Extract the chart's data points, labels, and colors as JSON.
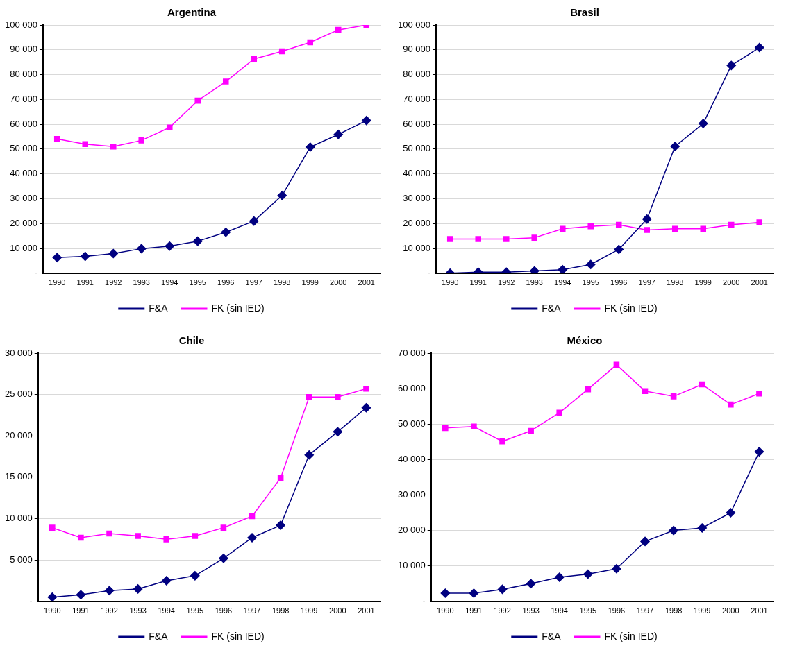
{
  "chart_data": [
    {
      "type": "line",
      "title": "Argentina",
      "categories": [
        "1990",
        "1991",
        "1992",
        "1993",
        "1994",
        "1995",
        "1996",
        "1997",
        "1998",
        "1999",
        "2000",
        "2001"
      ],
      "ylim": [
        0,
        100000
      ],
      "yticks": [
        {
          "value": 0,
          "label": "-"
        },
        {
          "value": 10000,
          "label": "10 000"
        },
        {
          "value": 20000,
          "label": "20 000"
        },
        {
          "value": 30000,
          "label": "30 000"
        },
        {
          "value": 40000,
          "label": "40 000"
        },
        {
          "value": 50000,
          "label": "50 000"
        },
        {
          "value": 60000,
          "label": "60 000"
        },
        {
          "value": 70000,
          "label": "70 000"
        },
        {
          "value": 80000,
          "label": "80 000"
        },
        {
          "value": 90000,
          "label": "90 000"
        },
        {
          "value": 100000,
          "label": "100 000"
        }
      ],
      "grid": "y",
      "legend": "bottom",
      "series": [
        {
          "name": "F&A",
          "color": "#000080",
          "marker": "diamond",
          "values": [
            6300,
            6800,
            7900,
            9900,
            10900,
            12900,
            16500,
            21000,
            31300,
            50800,
            55900,
            61500
          ]
        },
        {
          "name": "FK (sin IED)",
          "color": "#ff00ff",
          "marker": "square",
          "values": [
            54100,
            52000,
            51000,
            53500,
            58700,
            69500,
            77200,
            86300,
            89400,
            93000,
            98000,
            100000
          ]
        }
      ]
    },
    {
      "type": "line",
      "title": "Brasil",
      "categories": [
        "1990",
        "1991",
        "1992",
        "1993",
        "1994",
        "1995",
        "1996",
        "1997",
        "1998",
        "1999",
        "2000",
        "2001"
      ],
      "ylim": [
        0,
        100000
      ],
      "yticks": [
        {
          "value": 0,
          "label": "-"
        },
        {
          "value": 10000,
          "label": "10 000"
        },
        {
          "value": 20000,
          "label": "20 000"
        },
        {
          "value": 30000,
          "label": "30 000"
        },
        {
          "value": 40000,
          "label": "40 000"
        },
        {
          "value": 50000,
          "label": "50 000"
        },
        {
          "value": 60000,
          "label": "60 000"
        },
        {
          "value": 70000,
          "label": "70 000"
        },
        {
          "value": 80000,
          "label": "80 000"
        },
        {
          "value": 90000,
          "label": "90 000"
        },
        {
          "value": 100000,
          "label": "100 000"
        }
      ],
      "grid": "y",
      "legend": "bottom",
      "series": [
        {
          "name": "F&A",
          "color": "#000080",
          "marker": "diamond",
          "values": [
            0,
            400,
            400,
            900,
            1400,
            3500,
            9600,
            21800,
            51100,
            60300,
            83700,
            90900
          ]
        },
        {
          "name": "FK (sin IED)",
          "color": "#ff00ff",
          "marker": "square",
          "values": [
            13800,
            13800,
            13800,
            14300,
            17900,
            18900,
            19500,
            17400,
            17900,
            17900,
            19500,
            20500
          ]
        }
      ]
    },
    {
      "type": "line",
      "title": "Chile",
      "categories": [
        "1990",
        "1991",
        "1992",
        "1993",
        "1994",
        "1995",
        "1996",
        "1997",
        "1998",
        "1999",
        "2000",
        "2001"
      ],
      "ylim": [
        0,
        30000
      ],
      "yticks": [
        {
          "value": 0,
          "label": "-"
        },
        {
          "value": 5000,
          "label": "5 000"
        },
        {
          "value": 10000,
          "label": "10 000"
        },
        {
          "value": 15000,
          "label": "15 000"
        },
        {
          "value": 20000,
          "label": "20 000"
        },
        {
          "value": 25000,
          "label": "25 000"
        },
        {
          "value": 30000,
          "label": "30 000"
        }
      ],
      "grid": "y",
      "legend": "bottom",
      "series": [
        {
          "name": "F&A",
          "color": "#000080",
          "marker": "diamond",
          "values": [
            500,
            800,
            1300,
            1500,
            2500,
            3100,
            5200,
            7700,
            9200,
            17700,
            20500,
            23400
          ]
        },
        {
          "name": "FK (sin IED)",
          "color": "#ff00ff",
          "marker": "square",
          "values": [
            8900,
            7700,
            8200,
            7900,
            7500,
            7900,
            8900,
            10300,
            14900,
            24700,
            24700,
            25700
          ]
        }
      ]
    },
    {
      "type": "line",
      "title": "México",
      "categories": [
        "1990",
        "1991",
        "1992",
        "1993",
        "1994",
        "1995",
        "1996",
        "1997",
        "1998",
        "1999",
        "2000",
        "2001"
      ],
      "ylim": [
        0,
        70000
      ],
      "yticks": [
        {
          "value": 0,
          "label": "-"
        },
        {
          "value": 10000,
          "label": "10 000"
        },
        {
          "value": 20000,
          "label": "20 000"
        },
        {
          "value": 30000,
          "label": "30 000"
        },
        {
          "value": 40000,
          "label": "40 000"
        },
        {
          "value": 50000,
          "label": "50 000"
        },
        {
          "value": 60000,
          "label": "60 000"
        },
        {
          "value": 70000,
          "label": "70 000"
        }
      ],
      "grid": "y",
      "legend": "bottom",
      "series": [
        {
          "name": "F&A",
          "color": "#000080",
          "marker": "diamond",
          "values": [
            2300,
            2300,
            3400,
            5000,
            6800,
            7700,
            9200,
            16900,
            20000,
            20700,
            25000,
            42200
          ]
        },
        {
          "name": "FK (sin IED)",
          "color": "#ff00ff",
          "marker": "square",
          "values": [
            48900,
            49300,
            45100,
            48100,
            53200,
            59800,
            66700,
            59300,
            57800,
            61200,
            55500,
            58600
          ]
        }
      ]
    }
  ]
}
